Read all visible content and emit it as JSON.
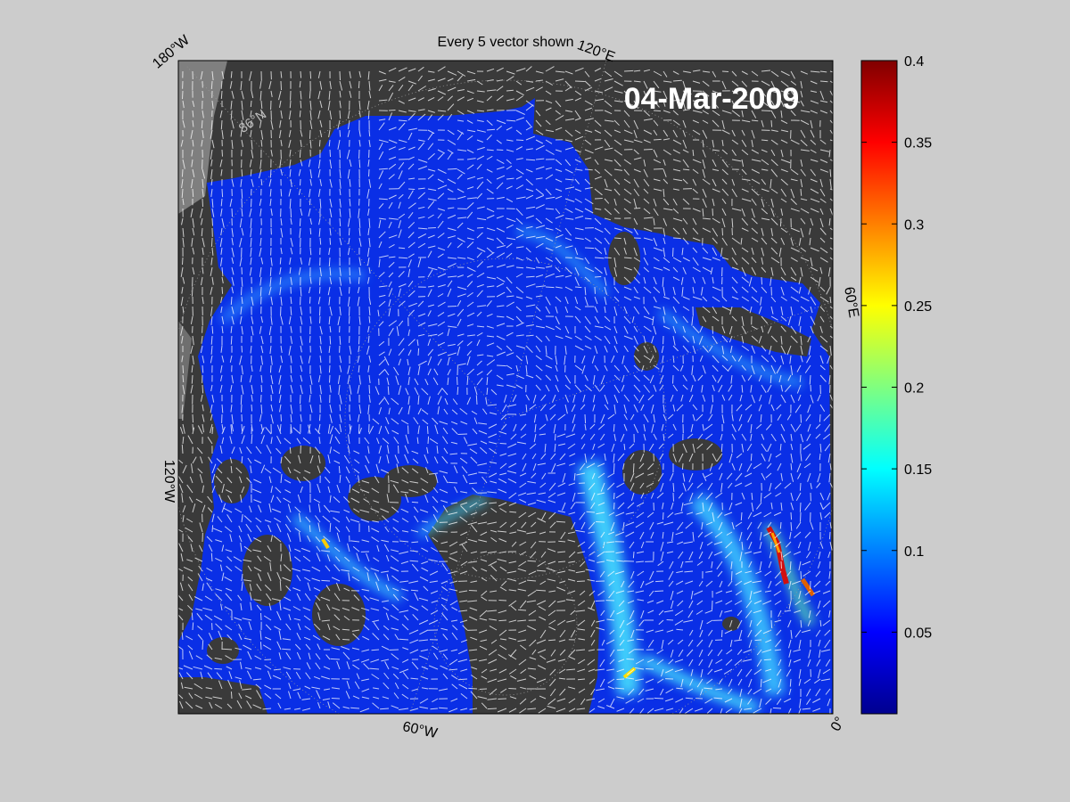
{
  "figure": {
    "title": "Every 5 vector shown",
    "date_label": "04-Mar-2009",
    "map_labels": {
      "lon_180W": "180°W",
      "lon_120E": "120°E",
      "lon_60E": "60°E",
      "lon_120W": "120°W",
      "lon_60W": "60°W",
      "lon_0": "0°",
      "lat_86N": "86°N"
    },
    "colors": {
      "background": "#cccccc",
      "land": "#3a3a3a",
      "outside_domain": "#7f7f7f",
      "ocean_low": "#0a2fe6",
      "vectors": "#ffffff"
    }
  },
  "chart_data": {
    "type": "heatmap",
    "title": "Every 5 vector shown",
    "annotation": "04-Mar-2009",
    "colormap": "jet",
    "colorbar": {
      "range": [
        0,
        0.4
      ],
      "ticks": [
        "0.4",
        "0.35",
        "0.3",
        "0.25",
        "0.2",
        "0.15",
        "0.1",
        "0.05"
      ]
    }
  }
}
